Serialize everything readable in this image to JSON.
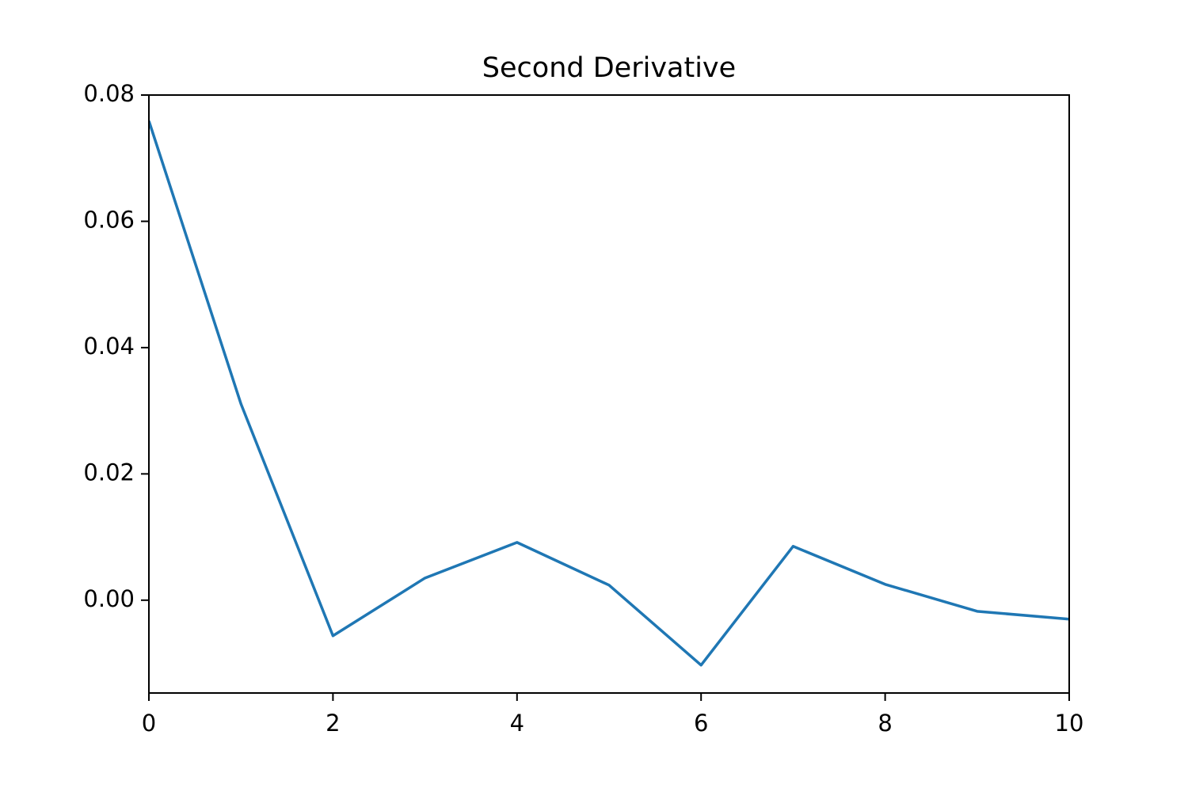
{
  "chart_data": {
    "type": "line",
    "title": "Second Derivative",
    "x": [
      0,
      1,
      2,
      3,
      4,
      5,
      6,
      7,
      8,
      9,
      10
    ],
    "values": [
      0.0759,
      0.0311,
      -0.00564,
      0.00351,
      0.00915,
      0.00238,
      -0.01028,
      0.00853,
      0.00251,
      -0.00176,
      -0.00301
    ],
    "color": "#1f77b4",
    "xlim": [
      0,
      10
    ],
    "xticks": [
      0,
      2,
      4,
      6,
      8,
      10
    ],
    "ylim": [
      -0.0147,
      0.08
    ],
    "yticks": [
      {
        "value": 0,
        "label": "0.00"
      },
      {
        "value": 0.02,
        "label": "0.02"
      },
      {
        "value": 0.04,
        "label": "0.04"
      },
      {
        "value": 0.06,
        "label": "0.06"
      },
      {
        "value": 0.08,
        "label": "0.08"
      }
    ],
    "grid": false
  }
}
